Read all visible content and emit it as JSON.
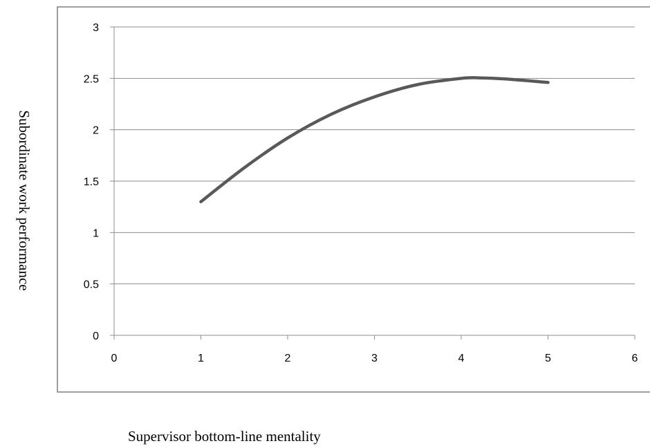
{
  "chart_data": {
    "type": "line",
    "title": "",
    "xlabel": "Supervisor bottom-line mentality",
    "ylabel": "Subordinate work performance",
    "xlim": [
      0,
      6
    ],
    "ylim": [
      0,
      3
    ],
    "x_ticks": [
      0,
      1,
      2,
      3,
      4,
      5,
      6
    ],
    "y_ticks": [
      0,
      0.5,
      1,
      1.5,
      2,
      2.5,
      3
    ],
    "grid": true,
    "legend": "none",
    "line_color": "#595959",
    "series": [
      {
        "x": [
          1,
          1.5,
          2,
          2.5,
          3,
          3.5,
          4,
          4.2,
          4.5,
          5
        ],
        "values": [
          1.3,
          1.63,
          1.92,
          2.15,
          2.32,
          2.44,
          2.5,
          2.505,
          2.495,
          2.46
        ]
      }
    ]
  }
}
